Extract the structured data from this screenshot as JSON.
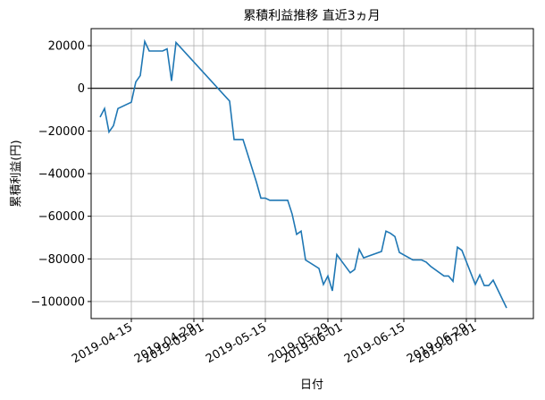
{
  "chart_data": {
    "type": "line",
    "title": "累積利益推移 直近3ヵ月",
    "xlabel": "日付",
    "ylabel": "累積利益(円)",
    "x_tick_labels": [
      "2019-04-15",
      "2019-04-29",
      "2019-05-01",
      "2019-05-15",
      "2019-05-29",
      "2019-06-01",
      "2019-06-15",
      "2019-06-29",
      "2019-07-01"
    ],
    "y_tick_labels": [
      "20000",
      "0",
      "−20000",
      "−40000",
      "−60000",
      "−80000",
      "−100000"
    ],
    "ylim": [
      -108000,
      28000
    ],
    "xlim": [
      "2019-04-06",
      "2019-07-14"
    ],
    "grid": true,
    "zero_line": true,
    "series": [
      {
        "color": "#1f77b4",
        "x": [
          "2019-04-08",
          "2019-04-09",
          "2019-04-10",
          "2019-04-11",
          "2019-04-12",
          "2019-04-15",
          "2019-04-16",
          "2019-04-17",
          "2019-04-18",
          "2019-04-19",
          "2019-04-22",
          "2019-04-23",
          "2019-04-24",
          "2019-04-25",
          "2019-05-07",
          "2019-05-08",
          "2019-05-10",
          "2019-05-13",
          "2019-05-14",
          "2019-05-15",
          "2019-05-16",
          "2019-05-20",
          "2019-05-21",
          "2019-05-22",
          "2019-05-23",
          "2019-05-24",
          "2019-05-27",
          "2019-05-28",
          "2019-05-29",
          "2019-05-30",
          "2019-05-31",
          "2019-06-03",
          "2019-06-04",
          "2019-06-05",
          "2019-06-06",
          "2019-06-10",
          "2019-06-11",
          "2019-06-12",
          "2019-06-13",
          "2019-06-14",
          "2019-06-17",
          "2019-06-18",
          "2019-06-19",
          "2019-06-20",
          "2019-06-21",
          "2019-06-24",
          "2019-06-25",
          "2019-06-26",
          "2019-06-27",
          "2019-06-28",
          "2019-07-01",
          "2019-07-02",
          "2019-07-03",
          "2019-07-04",
          "2019-07-05",
          "2019-07-08"
        ],
        "values": [
          -13500,
          -9500,
          -20500,
          -17500,
          -9500,
          -6500,
          3000,
          6000,
          22000,
          17500,
          17500,
          18500,
          3500,
          21500,
          -6000,
          -24000,
          -24000,
          -44000,
          -51500,
          -51500,
          -52500,
          -52500,
          -59000,
          -68500,
          -67000,
          -80500,
          -84500,
          -92000,
          -88000,
          -95000,
          -78000,
          -86500,
          -85000,
          -75500,
          -79500,
          -76500,
          -67000,
          -68000,
          -69500,
          -77000,
          -80500,
          -80500,
          -80500,
          -81500,
          -83500,
          -88000,
          -88000,
          -90500,
          -74500,
          -76000,
          -92000,
          -87500,
          -92500,
          -92500,
          -90000,
          -103000
        ]
      }
    ]
  }
}
